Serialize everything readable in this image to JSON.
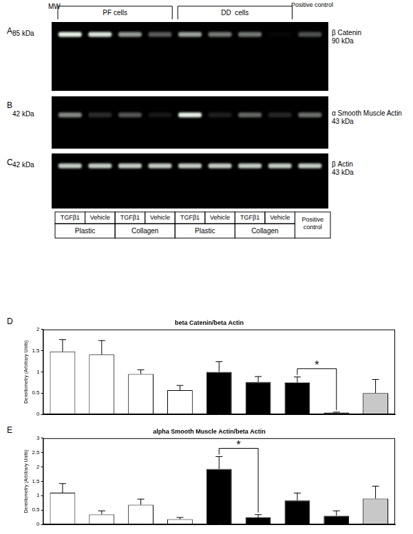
{
  "figure": {
    "header": {
      "mw": "MW",
      "groups": [
        "PF cells",
        "DD  cells"
      ],
      "positive_control": "Positive control"
    },
    "panels": [
      {
        "letter": "A",
        "mw_label": "85 kDa",
        "protein": "β Catenin",
        "size": "90 kDa"
      },
      {
        "letter": "B",
        "mw_label": "42 kDa",
        "protein": "α Smooth Muscle Actin",
        "size": "43 kDa"
      },
      {
        "letter": "C",
        "mw_label": "42 kDa",
        "protein": "β Actin",
        "size": "43 kDa"
      }
    ],
    "lanes": {
      "treatments": [
        "TGFβ1",
        "Vehicle",
        "TGFβ1",
        "Vehicle",
        "TGFβ1",
        "Vehicle",
        "TGFβ1",
        "Vehicle"
      ],
      "substrates": [
        "Plastic",
        "Collagen",
        "Plastic",
        "Collagen"
      ],
      "control": "Positive control"
    }
  },
  "chart_data": [
    {
      "type": "bar",
      "panel_label": "D",
      "title": "beta Catenin/beta Actin",
      "y_label": "Densitometry (Arbitrary Units)",
      "categories": [
        null,
        null,
        null,
        null,
        null,
        null,
        null,
        null,
        null
      ],
      "values": [
        1.48,
        1.41,
        0.95,
        0.57,
        1.0,
        0.76,
        0.75,
        0.04,
        0.5
      ],
      "errors": [
        0.28,
        0.33,
        0.1,
        0.11,
        0.24,
        0.13,
        0.13,
        0.01,
        0.32
      ],
      "colors": [
        "#ffffff",
        "#ffffff",
        "#ffffff",
        "#ffffff",
        "#000000",
        "#000000",
        "#000000",
        "#000000",
        "#c8c8c8"
      ],
      "ylim": [
        0,
        2
      ],
      "yticks": [
        0,
        0.5,
        1,
        1.5,
        2
      ],
      "grid": false,
      "tick_labels": "y",
      "annotations": [
        {
          "text": "*",
          "from": 6,
          "to": 7
        }
      ]
    },
    {
      "type": "bar",
      "panel_label": "E",
      "title": "alpha Smooth Muscle Actin/beta Actin",
      "y_label": "Densitometry (Arbitrary Units)",
      "categories": [
        null,
        null,
        null,
        null,
        null,
        null,
        null,
        null,
        null
      ],
      "values": [
        1.1,
        0.35,
        0.68,
        0.18,
        1.93,
        0.24,
        0.83,
        0.3,
        0.9
      ],
      "errors": [
        0.32,
        0.12,
        0.2,
        0.06,
        0.43,
        0.1,
        0.26,
        0.17,
        0.43
      ],
      "colors": [
        "#ffffff",
        "#ffffff",
        "#ffffff",
        "#ffffff",
        "#000000",
        "#000000",
        "#000000",
        "#000000",
        "#c8c8c8"
      ],
      "ylim": [
        0,
        3
      ],
      "yticks": [
        0,
        0.5,
        1,
        1.5,
        2,
        2.5,
        3
      ],
      "grid": false,
      "tick_labels": "y",
      "annotations": [
        {
          "text": "*",
          "from": 4,
          "to": 5
        }
      ]
    }
  ]
}
